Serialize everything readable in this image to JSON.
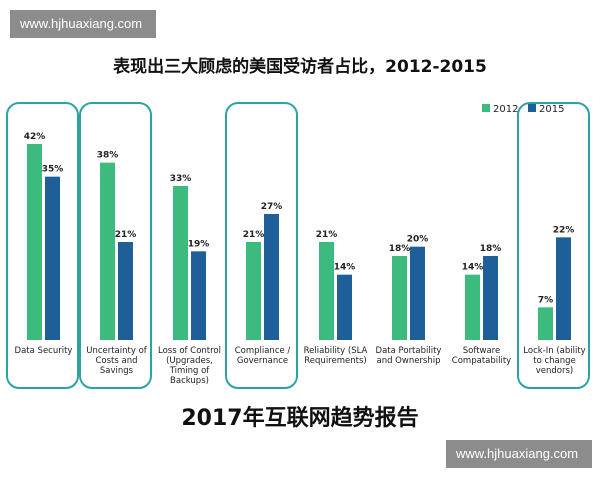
{
  "watermarks": {
    "top_left": "www.hjhuaxiang.com",
    "bottom_right": "www.hjhuaxiang.com"
  },
  "footer_title": "2017年互联网趋势报告",
  "chart_data": {
    "type": "bar",
    "title": "表现出三大顾虑的美国受访者占比，2012-2015",
    "xlabel": "",
    "ylabel": "",
    "ylim": [
      0,
      45
    ],
    "grid": false,
    "legend": "top-right",
    "categories": [
      [
        "Data Security"
      ],
      [
        "Uncertainty of",
        "Costs and",
        "Savings"
      ],
      [
        "Loss of Control",
        "(Upgrades,",
        "Timing of",
        "Backups)"
      ],
      [
        "Compliance /",
        "Governance"
      ],
      [
        "Reliability (SLA",
        "Requirements)"
      ],
      [
        "Data Portability",
        "and Ownership"
      ],
      [
        "Software",
        "Compatability"
      ],
      [
        "Lock-In (ability",
        "to change",
        "vendors)"
      ]
    ],
    "series": [
      {
        "name": "2012",
        "color": "#3dbb7f",
        "values": [
          42,
          38,
          33,
          21,
          21,
          18,
          14,
          7
        ],
        "labels": [
          "42%",
          "38%",
          "33%",
          "21%",
          "21%",
          "18%",
          "14%",
          "7%"
        ]
      },
      {
        "name": "2015",
        "color": "#1f5f99",
        "values": [
          35,
          21,
          19,
          27,
          14,
          20,
          18,
          22
        ],
        "labels": [
          "35%",
          "21%",
          "19%",
          "27%",
          "14%",
          "20%",
          "18%",
          "22%"
        ]
      }
    ],
    "highlighted_categories": [
      0,
      1,
      3,
      7
    ],
    "highlight_color": "#2ba3a3"
  }
}
